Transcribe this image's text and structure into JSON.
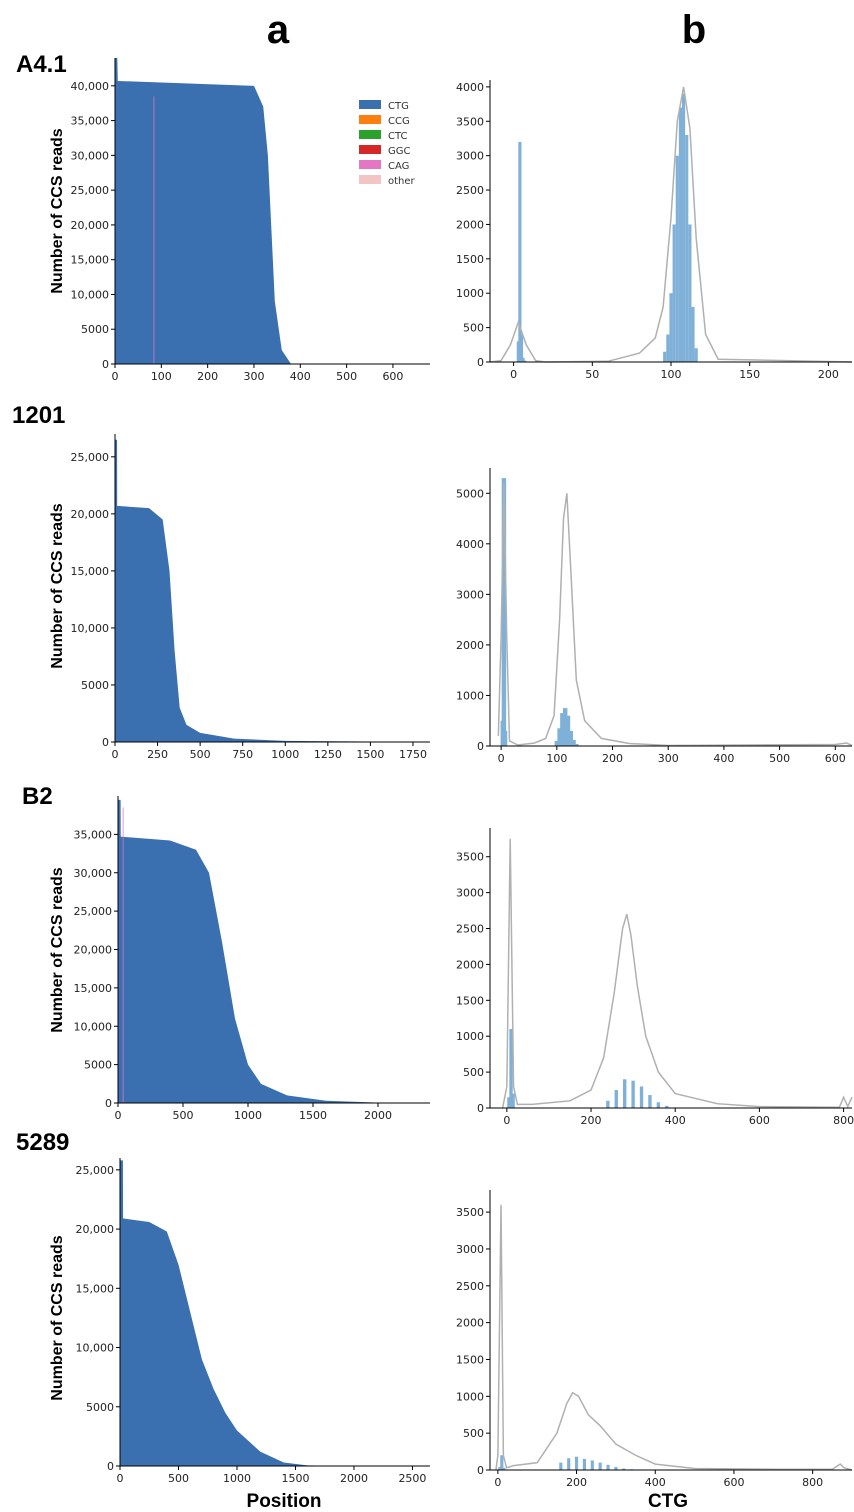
{
  "figure": {
    "column_labels": [
      "a",
      "b"
    ],
    "row_labels": [
      "A4.1",
      "1201",
      "B2",
      "5289"
    ],
    "y_axis_label": "Number of CCS reads",
    "x_axis_label_a": "Position",
    "x_axis_label_b": "CTG"
  },
  "colors": {
    "CTG": "#3a6fb0",
    "CCG": "#ff7f0e",
    "CTC": "#2ca02c",
    "GGC": "#d62728",
    "CAG": "#e377c2",
    "other": "#f2c4c4",
    "hist_fill": "#7fb0d8",
    "kde_line": "#b0b0b0"
  },
  "legend": [
    "CTG",
    "CCG",
    "CTC",
    "GGC",
    "CAG",
    "other"
  ],
  "chart_data": [
    {
      "id": "A4.1-a",
      "type": "area",
      "row": "A4.1",
      "panel": "a",
      "xlim": [
        0,
        680
      ],
      "ylim": [
        0,
        44000
      ],
      "x_ticks": [
        "0",
        "100",
        "200",
        "300",
        "400",
        "500",
        "600"
      ],
      "y_ticks": [
        "0",
        "5000",
        "10,000",
        "15,000",
        "20,000",
        "25,000",
        "30,000",
        "35,000",
        "40,000"
      ],
      "series": [
        {
          "name": "CTG",
          "x": [
            0,
            5,
            6,
            300,
            320,
            330,
            345,
            360,
            380,
            680
          ],
          "y": [
            44000,
            44000,
            40700,
            40000,
            37000,
            30000,
            9000,
            2000,
            0,
            0
          ]
        }
      ],
      "stripe_x": 84
    },
    {
      "id": "A4.1-b",
      "type": "bar",
      "row": "A4.1",
      "panel": "b",
      "xlim": [
        -15,
        215
      ],
      "ylim": [
        0,
        4100
      ],
      "x_ticks": [
        "0",
        "50",
        "100",
        "150",
        "200"
      ],
      "y_ticks": [
        "0",
        "500",
        "1000",
        "1500",
        "2000",
        "2500",
        "3000",
        "3500",
        "4000"
      ],
      "hist": {
        "x": [
          3,
          4,
          5,
          6,
          7,
          96,
          98,
          100,
          102,
          104,
          106,
          108,
          110,
          112,
          114,
          116
        ],
        "y": [
          300,
          3200,
          400,
          60,
          20,
          150,
          400,
          1000,
          2000,
          3000,
          3700,
          3900,
          3300,
          2000,
          800,
          200
        ]
      },
      "kde": {
        "x": [
          -15,
          -8,
          -2,
          3,
          8,
          14,
          20,
          60,
          80,
          90,
          95,
          100,
          104,
          108,
          112,
          116,
          122,
          130,
          215
        ],
        "y": [
          0,
          20,
          250,
          580,
          250,
          20,
          0,
          10,
          130,
          350,
          800,
          2100,
          3500,
          4000,
          3400,
          1800,
          400,
          40,
          0
        ]
      }
    },
    {
      "id": "1201-a",
      "type": "area",
      "row": "1201",
      "panel": "a",
      "xlim": [
        0,
        1850
      ],
      "ylim": [
        0,
        27000
      ],
      "x_ticks": [
        "0",
        "250",
        "500",
        "750",
        "1000",
        "1250",
        "1500",
        "1750"
      ],
      "y_ticks": [
        "0",
        "5000",
        "10,000",
        "15,000",
        "20,000",
        "25,000"
      ],
      "series": [
        {
          "name": "CTG",
          "x": [
            0,
            12,
            13,
            200,
            280,
            320,
            350,
            380,
            420,
            500,
            700,
            1000,
            1850
          ],
          "y": [
            26500,
            26500,
            20700,
            20500,
            19500,
            15000,
            8000,
            3000,
            1500,
            800,
            300,
            100,
            0
          ]
        }
      ]
    },
    {
      "id": "1201-b",
      "type": "bar",
      "row": "1201",
      "panel": "b",
      "xlim": [
        -20,
        630
      ],
      "ylim": [
        0,
        5500
      ],
      "x_ticks": [
        "0",
        "100",
        "200",
        "300",
        "400",
        "500",
        "600"
      ],
      "y_ticks": [
        "0",
        "1000",
        "2000",
        "3000",
        "4000",
        "5000"
      ],
      "hist": {
        "x": [
          3,
          5,
          7,
          100,
          105,
          110,
          115,
          120,
          125,
          130,
          135
        ],
        "y": [
          500,
          5300,
          300,
          100,
          350,
          650,
          750,
          600,
          300,
          120,
          40
        ]
      },
      "kde": {
        "x": [
          -5,
          0,
          5,
          10,
          15,
          30,
          60,
          80,
          95,
          105,
          112,
          118,
          125,
          135,
          150,
          180,
          230,
          300,
          600,
          620,
          630
        ],
        "y": [
          200,
          2200,
          5200,
          2200,
          100,
          20,
          60,
          150,
          600,
          2500,
          4500,
          5000,
          3500,
          1300,
          500,
          150,
          50,
          10,
          30,
          60,
          10
        ]
      }
    },
    {
      "id": "B2-a",
      "type": "area",
      "row": "B2",
      "panel": "a",
      "xlim": [
        0,
        2400
      ],
      "ylim": [
        0,
        40000
      ],
      "x_ticks": [
        "0",
        "500",
        "1000",
        "1500",
        "2000"
      ],
      "y_ticks": [
        "0",
        "5000",
        "10,000",
        "15,000",
        "20,000",
        "25,000",
        "30,000",
        "35,000"
      ],
      "series": [
        {
          "name": "CTG",
          "x": [
            0,
            20,
            21,
            400,
            600,
            700,
            800,
            900,
            1000,
            1100,
            1300,
            1600,
            2000,
            2400
          ],
          "y": [
            39500,
            39500,
            34700,
            34200,
            33000,
            30000,
            21000,
            11000,
            5000,
            2500,
            1000,
            300,
            50,
            0
          ]
        }
      ],
      "stripe_x": 40
    },
    {
      "id": "B2-b",
      "type": "bar",
      "row": "B2",
      "panel": "b",
      "xlim": [
        -40,
        820
      ],
      "ylim": [
        0,
        3900
      ],
      "x_ticks": [
        "0",
        "200",
        "400",
        "600",
        "800"
      ],
      "y_ticks": [
        "0",
        "500",
        "1000",
        "1500",
        "2000",
        "2500",
        "3000",
        "3500"
      ],
      "hist": {
        "x": [
          5,
          10,
          15,
          240,
          260,
          280,
          300,
          320,
          340,
          360,
          380
        ],
        "y": [
          150,
          1100,
          200,
          100,
          250,
          400,
          380,
          300,
          180,
          80,
          30
        ]
      },
      "kde": {
        "x": [
          -10,
          0,
          8,
          16,
          25,
          60,
          150,
          200,
          230,
          255,
          275,
          285,
          295,
          310,
          330,
          360,
          400,
          500,
          600,
          790,
          800,
          810,
          820
        ],
        "y": [
          0,
          300,
          3750,
          300,
          50,
          50,
          100,
          250,
          700,
          1600,
          2500,
          2700,
          2400,
          1700,
          1000,
          500,
          200,
          60,
          20,
          10,
          150,
          20,
          150
        ]
      }
    },
    {
      "id": "5289-a",
      "type": "area",
      "row": "5289",
      "panel": "a",
      "xlim": [
        0,
        2650
      ],
      "ylim": [
        0,
        26000
      ],
      "x_ticks": [
        "0",
        "500",
        "1000",
        "1500",
        "2000",
        "2500"
      ],
      "y_ticks": [
        "0",
        "5000",
        "10,000",
        "15,000",
        "20,000",
        "25,000"
      ],
      "series": [
        {
          "name": "CTG",
          "x": [
            0,
            25,
            26,
            250,
            400,
            500,
            600,
            700,
            800,
            900,
            1000,
            1200,
            1400,
            1600,
            2000,
            2650
          ],
          "y": [
            25800,
            25800,
            20900,
            20600,
            19800,
            17000,
            13000,
            9000,
            6500,
            4500,
            3000,
            1200,
            300,
            50,
            0,
            0
          ]
        }
      ]
    },
    {
      "id": "5289-b",
      "type": "bar",
      "row": "5289",
      "panel": "b",
      "xlim": [
        -20,
        900
      ],
      "ylim": [
        0,
        3800
      ],
      "x_ticks": [
        "0",
        "200",
        "400",
        "600",
        "800"
      ],
      "y_ticks": [
        "0",
        "500",
        "1000",
        "1500",
        "2000",
        "2500",
        "3000",
        "3500"
      ],
      "hist": {
        "x": [
          5,
          10,
          15,
          160,
          180,
          200,
          220,
          240,
          260,
          280,
          300,
          320,
          340
        ],
        "y": [
          40,
          200,
          30,
          100,
          160,
          180,
          150,
          130,
          100,
          70,
          40,
          20,
          10
        ]
      },
      "kde": {
        "x": [
          -5,
          0,
          8,
          14,
          22,
          40,
          100,
          150,
          175,
          190,
          205,
          230,
          260,
          300,
          350,
          400,
          500,
          700,
          850,
          870,
          880,
          900
        ],
        "y": [
          0,
          200,
          3600,
          200,
          30,
          60,
          100,
          500,
          900,
          1050,
          1000,
          750,
          600,
          350,
          200,
          80,
          20,
          10,
          10,
          80,
          30,
          0
        ]
      }
    }
  ]
}
